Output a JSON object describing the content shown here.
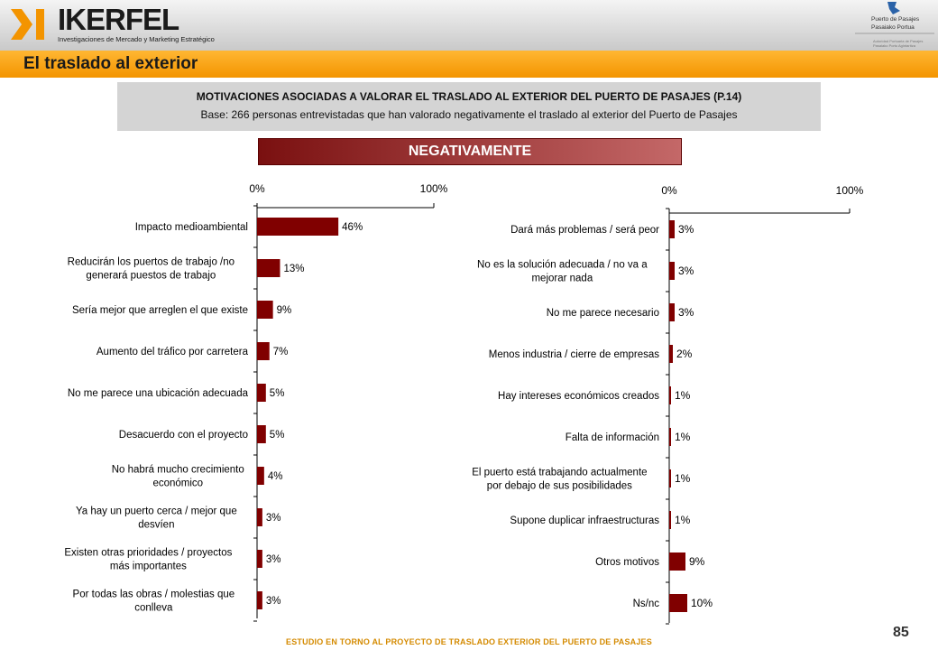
{
  "brand": {
    "name": "IKERFEL",
    "tagline": "Investigaciones de Mercado y Marketing Estratégico",
    "accent": "#f39400",
    "bar_color": "#800000"
  },
  "port_logo": {
    "line1": "Puerto de Pasajes",
    "line2": "Pasaiako Portua",
    "tiny": "Autoridad Portuaria de Pasajes\nPasaiako Portu Agintaritza"
  },
  "section_title": "El traslado al exterior",
  "info_box": {
    "title": "MOTIVACIONES ASOCIADAS A VALORAR EL TRASLADO AL EXTERIOR DEL PUERTO DE PASAJES (P.14)",
    "subtitle": "Base: 266 personas entrevistadas que han valorado negativamente el traslado al exterior del Puerto de Pasajes"
  },
  "banner": "NEGATIVAMENTE",
  "chart_data": [
    {
      "type": "bar",
      "orientation": "horizontal",
      "xlim": [
        0,
        100
      ],
      "tick_labels": [
        "0%",
        "100%"
      ],
      "categories": [
        "Impacto medioambiental",
        "Reducirán los puertos de trabajo /no generará puestos de trabajo",
        "Sería mejor que arreglen el que existe",
        "Aumento del tráfico por carretera",
        "No me parece una ubicación adecuada",
        "Desacuerdo con el proyecto",
        "No habrá mucho crecimiento económico",
        "Ya hay un puerto cerca / mejor que desvíen",
        "Existen otras prioridades / proyectos más importantes",
        "Por todas las obras / molestias que conlleva"
      ],
      "label_lines": [
        [
          "Impacto medioambiental"
        ],
        [
          "Reducirán los puertos de trabajo /no",
          "generará puestos de trabajo"
        ],
        [
          "Sería mejor que arreglen el que existe"
        ],
        [
          "Aumento del tráfico por carretera"
        ],
        [
          "No me parece una ubicación adecuada"
        ],
        [
          "Desacuerdo con el proyecto"
        ],
        [
          "No habrá mucho crecimiento",
          "económico"
        ],
        [
          "Ya hay un puerto cerca / mejor que",
          "desvíen"
        ],
        [
          "Existen otras prioridades / proyectos",
          "más importantes"
        ],
        [
          "Por todas las obras / molestias que",
          "conlleva"
        ]
      ],
      "values": [
        46,
        13,
        9,
        7,
        5,
        5,
        4,
        3,
        3,
        3
      ],
      "value_labels": [
        "46%",
        "13%",
        "9%",
        "7%",
        "5%",
        "5%",
        "4%",
        "3%",
        "3%",
        "3%"
      ]
    },
    {
      "type": "bar",
      "orientation": "horizontal",
      "xlim": [
        0,
        100
      ],
      "tick_labels": [
        "0%",
        "100%"
      ],
      "categories": [
        "Dará más problemas / será peor",
        "No es la solución adecuada / no va a mejorar nada",
        "No me parece necesario",
        "Menos industria / cierre de empresas",
        "Hay intereses económicos creados",
        "Falta de información",
        "El puerto está trabajando actualmente por debajo de sus posibilidades",
        "Supone duplicar infraestructuras",
        "Otros motivos",
        "Ns/nc"
      ],
      "label_lines": [
        [
          "Dará más problemas / será peor"
        ],
        [
          "No es la solución adecuada / no va a",
          "mejorar nada"
        ],
        [
          "No me parece necesario"
        ],
        [
          "Menos industria / cierre de empresas"
        ],
        [
          "Hay intereses económicos creados"
        ],
        [
          "Falta de información"
        ],
        [
          "El puerto está trabajando actualmente",
          "por debajo de sus posibilidades"
        ],
        [
          "Supone duplicar infraestructuras"
        ],
        [
          "Otros motivos"
        ],
        [
          "Ns/nc"
        ]
      ],
      "values": [
        3,
        3,
        3,
        2,
        1,
        1,
        1,
        1,
        9,
        10
      ],
      "value_labels": [
        "3%",
        "3%",
        "3%",
        "2%",
        "1%",
        "1%",
        "1%",
        "1%",
        "9%",
        "10%"
      ]
    }
  ],
  "footer": "ESTUDIO EN TORNO AL PROYECTO DE TRASLADO EXTERIOR DEL PUERTO DE PASAJES",
  "page_number": "85"
}
